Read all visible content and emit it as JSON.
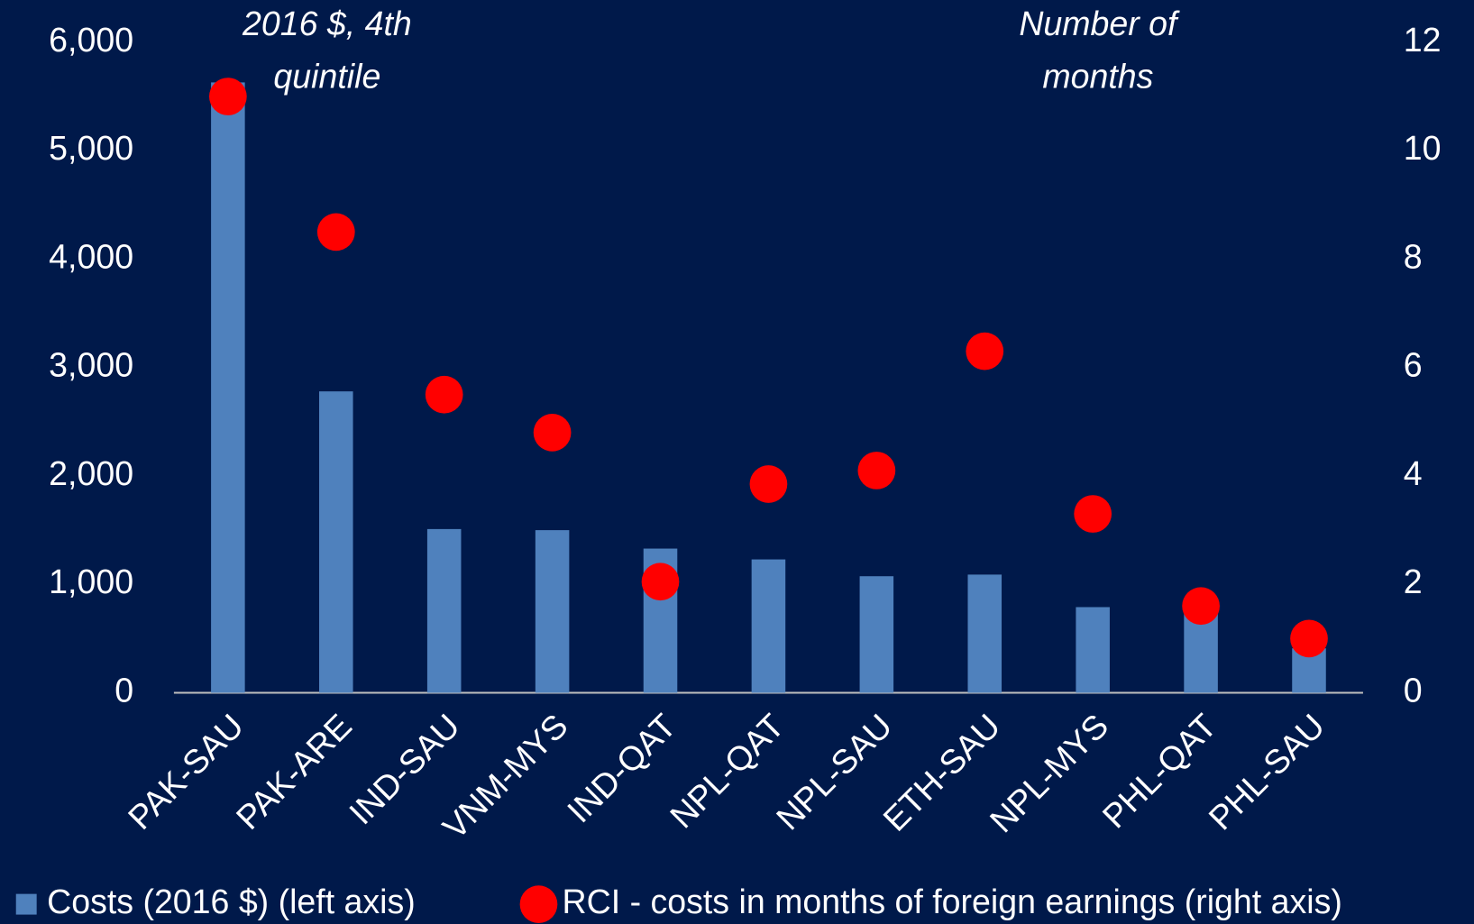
{
  "chart_data": {
    "type": "bar_dot",
    "annotations": {
      "left_note": [
        "2016 $, 4th",
        "quintile"
      ],
      "right_note": [
        "Number of",
        "months"
      ]
    },
    "categories": [
      "PAK-SAU",
      "PAK-ARE",
      "IND-SAU",
      "VNM-MYS",
      "IND-QAT",
      "NPL-QAT",
      "NPL-SAU",
      "ETH-SAU",
      "NPL-MYS",
      "PHL-QAT",
      "PHL-SAU"
    ],
    "series": [
      {
        "name": "Costs (2016 $) (left axis)",
        "color": "#4f81bd",
        "type": "bar",
        "values": [
          5630,
          2780,
          1510,
          1500,
          1330,
          1230,
          1075,
          1090,
          790,
          750,
          410
        ]
      },
      {
        "name": "RCI - costs in months of foreign earnings (right axis)",
        "color": "#ff0000",
        "type": "scatter",
        "axis": "y2",
        "values": [
          11.0,
          8.5,
          5.5,
          4.8,
          2.05,
          3.85,
          4.1,
          6.3,
          3.3,
          1.6,
          1.0
        ]
      }
    ],
    "ylim": [
      0,
      6000
    ],
    "yticks": [
      0,
      {
        "value": 1000,
        "label": "1,000"
      },
      {
        "value": 2000,
        "label": "2,000"
      },
      {
        "value": 3000,
        "label": "3,000"
      },
      {
        "value": 4000,
        "label": "4,000"
      },
      {
        "value": 5000,
        "label": "5,000"
      },
      {
        "value": 6000,
        "label": "6,000"
      }
    ],
    "y2lim": [
      0,
      12
    ],
    "y2ticks": [
      0,
      2,
      4,
      6,
      8,
      10,
      12
    ],
    "grid": false
  }
}
